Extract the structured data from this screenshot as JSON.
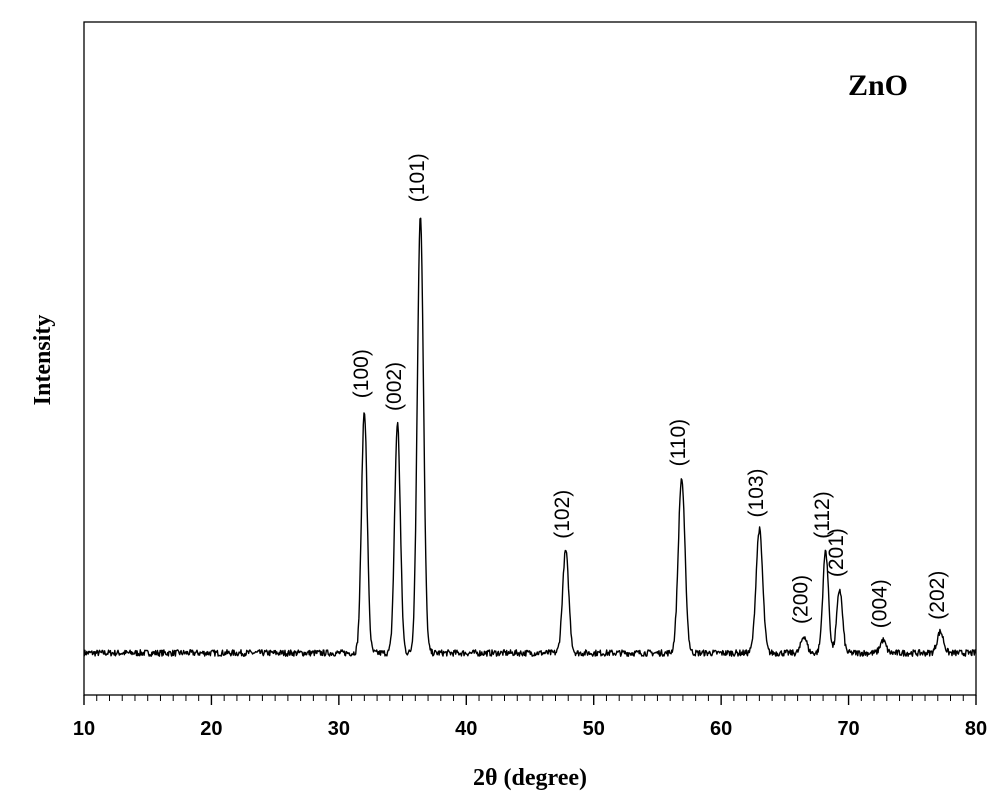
{
  "chart_data": {
    "type": "line",
    "title": "",
    "xlabel": "2θ (degree)",
    "ylabel": "Intensity",
    "xlim": [
      10,
      80
    ],
    "ylim": [
      0,
      100
    ],
    "x_major_ticks": [
      10,
      20,
      30,
      40,
      50,
      60,
      70,
      80
    ],
    "x_minor_step": 1,
    "grid": false,
    "annotation": "ZnO",
    "baseline": 9,
    "peaks": [
      {
        "hkl": "(100)",
        "x": 32.0,
        "y": 57,
        "width": 0.22
      },
      {
        "hkl": "(002)",
        "x": 34.6,
        "y": 54,
        "width": 0.22
      },
      {
        "hkl": "(101)",
        "x": 36.4,
        "y": 103,
        "width": 0.24
      },
      {
        "hkl": "(102)",
        "x": 47.8,
        "y": 24,
        "width": 0.24
      },
      {
        "hkl": "(110)",
        "x": 56.9,
        "y": 41,
        "width": 0.26
      },
      {
        "hkl": "(103)",
        "x": 63.0,
        "y": 29,
        "width": 0.26
      },
      {
        "hkl": "(200)",
        "x": 66.5,
        "y": 4,
        "width": 0.22
      },
      {
        "hkl": "(112)",
        "x": 68.2,
        "y": 24,
        "width": 0.22
      },
      {
        "hkl": "(201)",
        "x": 69.3,
        "y": 15,
        "width": 0.22
      },
      {
        "hkl": "(004)",
        "x": 72.7,
        "y": 3,
        "width": 0.22
      },
      {
        "hkl": "(202)",
        "x": 77.2,
        "y": 5,
        "width": 0.25
      }
    ]
  }
}
